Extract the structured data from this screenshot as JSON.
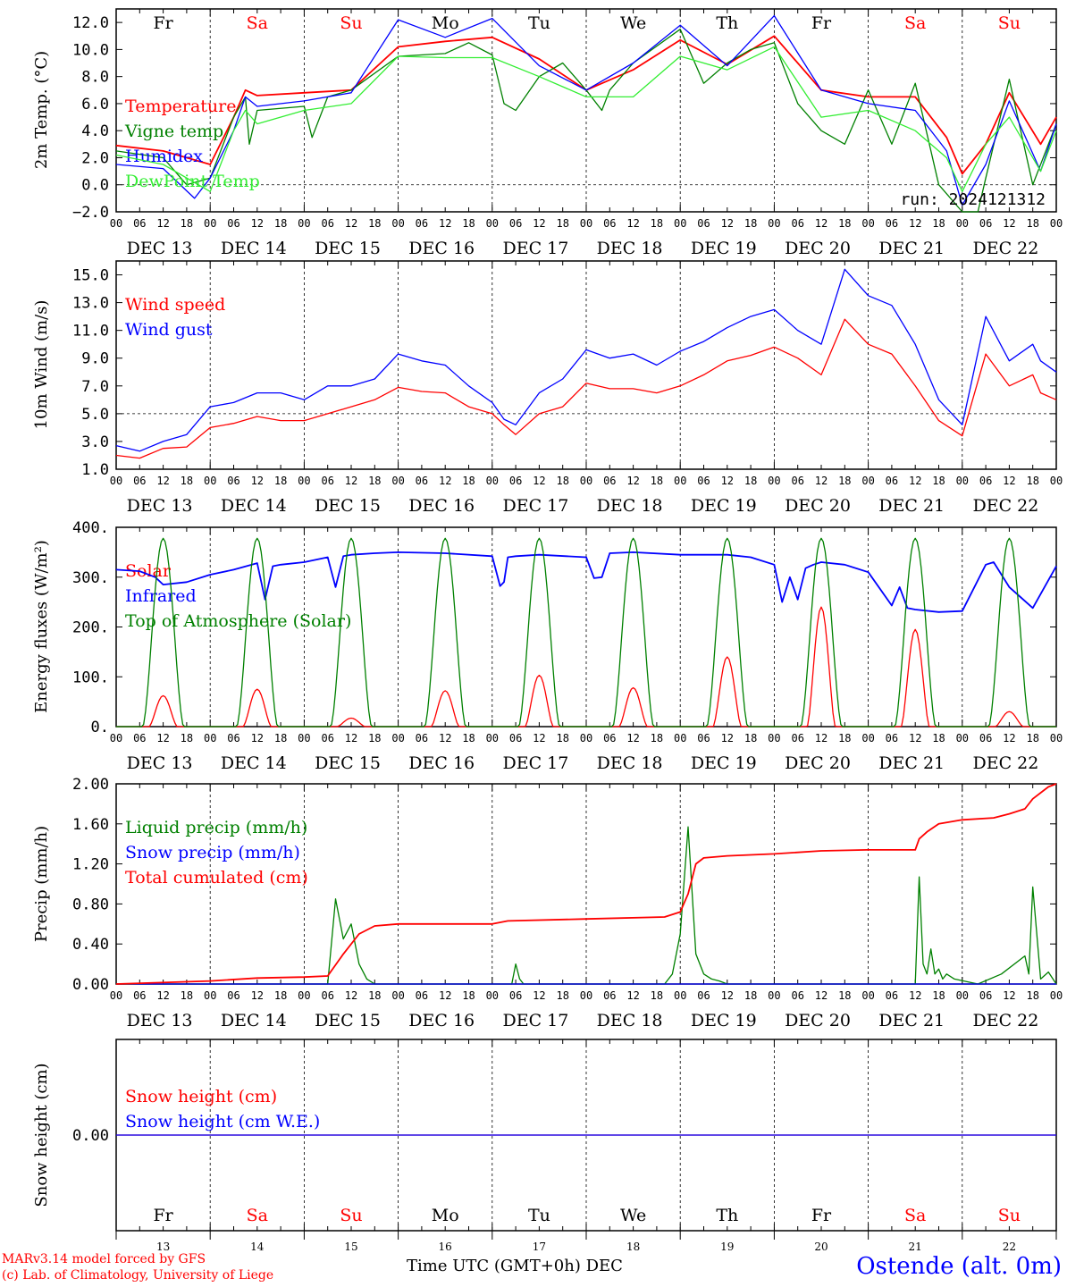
{
  "footer": {
    "credit_line1": "MARv3.14 model forced by GFS",
    "credit_line2": "(c) Lab. of Climatology, University of Liege",
    "xlabel": "Time UTC (GMT+0h)",
    "month": "DEC",
    "station": "Ostende (alt. 0m)"
  },
  "colors": {
    "red": "#ff0000",
    "blue": "#0000ff",
    "green": "#008000",
    "lightgreen": "#33ee33",
    "black": "#000000",
    "weekend": "#ff0000"
  },
  "chart_data": {
    "time_axis": {
      "days": [
        "DEC 13",
        "DEC 14",
        "DEC 15",
        "DEC 16",
        "DEC 17",
        "DEC 18",
        "DEC 19",
        "DEC 20",
        "DEC 21",
        "DEC 22"
      ],
      "hour_ticks": [
        "00",
        "06",
        "12",
        "18"
      ],
      "weekdays": [
        "Fr",
        "Sa",
        "Su",
        "Mo",
        "Tu",
        "We",
        "Th",
        "Fr",
        "Sa",
        "Su"
      ],
      "weekend_flags": [
        false,
        true,
        true,
        false,
        false,
        false,
        false,
        false,
        true,
        true
      ],
      "day_numbers": [
        "13",
        "14",
        "15",
        "16",
        "17",
        "18",
        "19",
        "20",
        "21",
        "22"
      ],
      "range_hours": [
        0,
        240
      ]
    },
    "panels": [
      {
        "id": "temp",
        "type": "line",
        "ylabel": "2m Temp. (°C)",
        "ylim": [
          -2,
          13
        ],
        "yticks": [
          "−2.0",
          "0.0",
          "2.0",
          "4.0",
          "6.0",
          "8.0",
          "10.0",
          "12.0"
        ],
        "ytick_values": [
          -2,
          0,
          2,
          4,
          6,
          8,
          10,
          12
        ],
        "ref_line": 0,
        "annotation": "run: 2024121312",
        "series": [
          {
            "name": "Temperature",
            "color": "#ff0000",
            "x": [
              0,
              12,
              24,
              30,
              33,
              36,
              48,
              60,
              72,
              84,
              96,
              108,
              120,
              132,
              144,
              156,
              168,
              180,
              192,
              204,
              212,
              216,
              222,
              228,
              236,
              240
            ],
            "y": [
              2.9,
              2.5,
              1.5,
              5.0,
              7.0,
              6.6,
              6.8,
              7.0,
              10.2,
              10.6,
              10.9,
              9.3,
              7.0,
              8.5,
              10.7,
              8.9,
              11.0,
              7.0,
              6.5,
              6.5,
              3.5,
              0.8,
              3.0,
              6.8,
              3.0,
              5.0
            ]
          },
          {
            "name": "Vigne temp",
            "color": "#008000",
            "x": [
              0,
              12,
              18,
              24,
              30,
              33,
              34,
              36,
              48,
              50,
              54,
              60,
              72,
              84,
              90,
              96,
              99,
              102,
              108,
              114,
              120,
              124,
              126,
              132,
              144,
              150,
              156,
              162,
              168,
              174,
              180,
              186,
              192,
              198,
              204,
              210,
              216,
              220,
              222,
              228,
              234,
              240
            ],
            "y": [
              2.5,
              2.0,
              0.0,
              0.5,
              5.0,
              6.5,
              3.0,
              5.5,
              5.8,
              3.5,
              6.5,
              7.0,
              9.5,
              9.7,
              10.5,
              9.6,
              6.0,
              5.5,
              8.0,
              9.0,
              7.0,
              5.5,
              7.0,
              9.0,
              11.5,
              7.5,
              9.0,
              10.0,
              10.5,
              6.0,
              4.0,
              3.0,
              7.0,
              3.0,
              7.5,
              0.0,
              -2.5,
              -2.0,
              0.5,
              7.8,
              0.0,
              4.5
            ]
          },
          {
            "name": "Humidex",
            "color": "#0000ff",
            "x": [
              0,
              12,
              20,
              24,
              30,
              33,
              36,
              48,
              60,
              72,
              84,
              96,
              108,
              120,
              132,
              144,
              156,
              168,
              180,
              192,
              204,
              212,
              216,
              222,
              228,
              236,
              240
            ],
            "y": [
              1.5,
              1.2,
              -1.0,
              0.5,
              4.0,
              6.5,
              5.8,
              6.2,
              6.8,
              12.2,
              10.9,
              12.3,
              8.8,
              7.0,
              9.0,
              11.8,
              8.8,
              12.5,
              7.0,
              6.0,
              5.5,
              2.5,
              -1.5,
              1.5,
              6.2,
              1.0,
              4.5
            ]
          },
          {
            "name": "DewPoint Temp",
            "color": "#33ee33",
            "x": [
              0,
              12,
              24,
              30,
              33,
              36,
              48,
              60,
              72,
              84,
              96,
              108,
              120,
              132,
              144,
              156,
              168,
              180,
              192,
              204,
              212,
              216,
              222,
              228,
              236,
              240
            ],
            "y": [
              2.2,
              1.5,
              -0.5,
              4.0,
              5.5,
              4.5,
              5.5,
              6.0,
              9.5,
              9.4,
              9.4,
              8.0,
              6.5,
              6.5,
              9.5,
              8.5,
              10.2,
              5.0,
              5.5,
              4.0,
              2.0,
              -0.5,
              3.0,
              5.0,
              1.0,
              4.0
            ]
          }
        ]
      },
      {
        "id": "wind",
        "type": "line",
        "ylabel": "10m Wind (m/s)",
        "ylim": [
          1,
          16
        ],
        "yticks": [
          "1.0",
          "3.0",
          "5.0",
          "7.0",
          "9.0",
          "11.0",
          "13.0",
          "15.0"
        ],
        "ytick_values": [
          1,
          3,
          5,
          7,
          9,
          11,
          13,
          15
        ],
        "ref_line": 5,
        "series": [
          {
            "name": "Wind speed",
            "color": "#ff0000",
            "x": [
              0,
              6,
              12,
              18,
              24,
              30,
              36,
              42,
              48,
              54,
              60,
              66,
              72,
              78,
              84,
              90,
              96,
              99,
              102,
              108,
              114,
              120,
              126,
              132,
              138,
              144,
              150,
              156,
              162,
              168,
              174,
              180,
              186,
              192,
              198,
              204,
              210,
              216,
              222,
              228,
              234,
              236,
              240
            ],
            "y": [
              2.0,
              1.8,
              2.5,
              2.6,
              4.0,
              4.3,
              4.8,
              4.5,
              4.5,
              5.0,
              5.5,
              6.0,
              6.9,
              6.6,
              6.5,
              5.5,
              5.0,
              4.2,
              3.5,
              5.0,
              5.5,
              7.2,
              6.8,
              6.8,
              6.5,
              7.0,
              7.8,
              8.8,
              9.2,
              9.8,
              9.0,
              7.8,
              11.8,
              10.0,
              9.3,
              7.0,
              4.5,
              3.4,
              9.3,
              7.0,
              7.8,
              6.5,
              6.0
            ]
          },
          {
            "name": "Wind gust",
            "color": "#0000ff",
            "x": [
              0,
              6,
              12,
              18,
              24,
              30,
              36,
              42,
              48,
              54,
              60,
              66,
              72,
              78,
              84,
              90,
              96,
              99,
              102,
              108,
              114,
              120,
              126,
              132,
              138,
              144,
              150,
              156,
              162,
              168,
              174,
              180,
              186,
              192,
              198,
              204,
              210,
              216,
              222,
              228,
              234,
              236,
              240
            ],
            "y": [
              2.7,
              2.3,
              3.0,
              3.5,
              5.5,
              5.8,
              6.5,
              6.5,
              6.0,
              7.0,
              7.0,
              7.5,
              9.3,
              8.8,
              8.5,
              7.0,
              5.8,
              4.6,
              4.2,
              6.5,
              7.5,
              9.6,
              9.0,
              9.3,
              8.5,
              9.5,
              10.2,
              11.2,
              12.0,
              12.5,
              11.0,
              10.0,
              15.4,
              13.5,
              12.8,
              10.0,
              6.0,
              4.2,
              12.0,
              8.8,
              10.0,
              8.8,
              8.0
            ]
          }
        ]
      },
      {
        "id": "energy",
        "type": "line",
        "ylabel": "Energy fluxes (W/m²)",
        "ylim": [
          0,
          400
        ],
        "yticks": [
          "0.",
          "100.",
          "200.",
          "300.",
          "400."
        ],
        "ytick_values": [
          0,
          100,
          200,
          300,
          400
        ],
        "series": [
          {
            "name": "Solar",
            "color": "#ff0000",
            "daily_peaks": [
              62,
              75,
              17,
              72,
              103,
              78,
              140,
              240,
              195,
              30
            ]
          },
          {
            "name": "Infrared",
            "color": "#0000ff",
            "x": [
              0,
              6,
              10,
              12,
              18,
              24,
              30,
              36,
              38,
              40,
              42,
              48,
              54,
              56,
              58,
              60,
              66,
              72,
              84,
              96,
              98,
              99,
              100,
              102,
              108,
              120,
              122,
              124,
              126,
              132,
              144,
              156,
              162,
              168,
              170,
              172,
              174,
              176,
              178,
              180,
              186,
              192,
              198,
              200,
              202,
              204,
              210,
              216,
              222,
              224,
              228,
              234,
              240
            ],
            "y": [
              315,
              312,
              300,
              285,
              290,
              305,
              315,
              328,
              255,
              322,
              325,
              330,
              340,
              280,
              342,
              345,
              348,
              350,
              348,
              342,
              282,
              290,
              340,
              342,
              345,
              340,
              298,
              300,
              348,
              350,
              345,
              345,
              340,
              325,
              250,
              300,
              255,
              318,
              325,
              330,
              325,
              310,
              243,
              280,
              238,
              235,
              230,
              232,
              325,
              330,
              280,
              238,
              322
            ]
          },
          {
            "name": "Top of Atmosphere (Solar)",
            "color": "#008000",
            "daily_peaks": [
              378,
              378,
              378,
              378,
              378,
              378,
              378,
              378,
              378,
              378
            ]
          }
        ]
      },
      {
        "id": "precip",
        "type": "line",
        "ylabel": "Precip (mm/h)",
        "ylim": [
          0,
          2
        ],
        "yticks": [
          "0.00",
          "0.40",
          "0.80",
          "1.20",
          "1.60",
          "2.00"
        ],
        "ytick_values": [
          0,
          0.4,
          0.8,
          1.2,
          1.6,
          2.0
        ],
        "series": [
          {
            "name": "Liquid precip (mm/h)",
            "color": "#008000",
            "x": [
              0,
              54,
              56,
              58,
              60,
              62,
              64,
              66,
              68,
              72,
              101,
              102,
              103,
              104,
              140,
              142,
              144,
              146,
              148,
              150,
              152,
              154,
              156,
              158,
              168,
              204,
              205,
              206,
              207,
              208,
              209,
              210,
              211,
              212,
              214,
              220,
              226,
              232,
              233,
              234,
              236,
              238,
              240
            ],
            "y": [
              0,
              0,
              0.85,
              0.45,
              0.6,
              0.2,
              0.05,
              0,
              0,
              0,
              0,
              0.2,
              0.05,
              0,
              0,
              0.1,
              0.5,
              1.57,
              0.3,
              0.1,
              0.05,
              0.03,
              0,
              0,
              0,
              0,
              1.07,
              0.2,
              0.1,
              0.35,
              0.1,
              0.15,
              0.05,
              0.1,
              0.05,
              0,
              0.1,
              0.28,
              0.1,
              0.97,
              0.05,
              0.12,
              0
            ]
          },
          {
            "name": "Snow precip (mm/h)",
            "color": "#0000ff",
            "x": [
              0,
              240
            ],
            "y": [
              0,
              0
            ]
          },
          {
            "name": "Total cumulated (cm)",
            "color": "#ff0000",
            "x": [
              0,
              24,
              36,
              48,
              54,
              58,
              62,
              66,
              72,
              96,
              100,
              120,
              140,
              144,
              146,
              148,
              150,
              156,
              168,
              180,
              192,
              204,
              205,
              207,
              210,
              216,
              224,
              228,
              232,
              234,
              238,
              240
            ],
            "y": [
              0,
              0.03,
              0.06,
              0.07,
              0.08,
              0.3,
              0.5,
              0.58,
              0.6,
              0.6,
              0.63,
              0.65,
              0.67,
              0.72,
              0.9,
              1.2,
              1.26,
              1.28,
              1.3,
              1.33,
              1.34,
              1.34,
              1.45,
              1.52,
              1.6,
              1.64,
              1.66,
              1.7,
              1.75,
              1.85,
              1.97,
              2.0
            ]
          }
        ]
      },
      {
        "id": "snow",
        "type": "line",
        "ylabel": "Snow height (cm)",
        "ylim": [
          -1,
          1
        ],
        "yticks": [
          "0.00"
        ],
        "ytick_values": [
          0
        ],
        "series": [
          {
            "name": "Snow height (cm)",
            "color": "#ff0000",
            "x": [
              0,
              240
            ],
            "y": [
              0,
              0
            ]
          },
          {
            "name": "Snow height (cm W.E.)",
            "color": "#0000ff",
            "x": [
              0,
              240
            ],
            "y": [
              0,
              0
            ]
          }
        ]
      }
    ]
  }
}
